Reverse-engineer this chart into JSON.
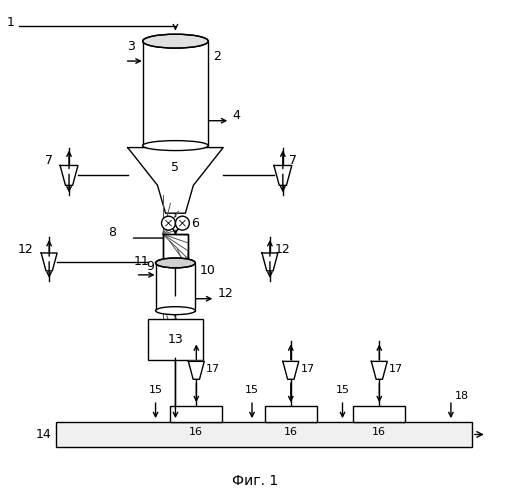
{
  "title": "Фиг. 1",
  "bg_color": "#ffffff",
  "line_color": "#000000",
  "figsize": [
    5.1,
    5.0
  ],
  "dpi": 100
}
